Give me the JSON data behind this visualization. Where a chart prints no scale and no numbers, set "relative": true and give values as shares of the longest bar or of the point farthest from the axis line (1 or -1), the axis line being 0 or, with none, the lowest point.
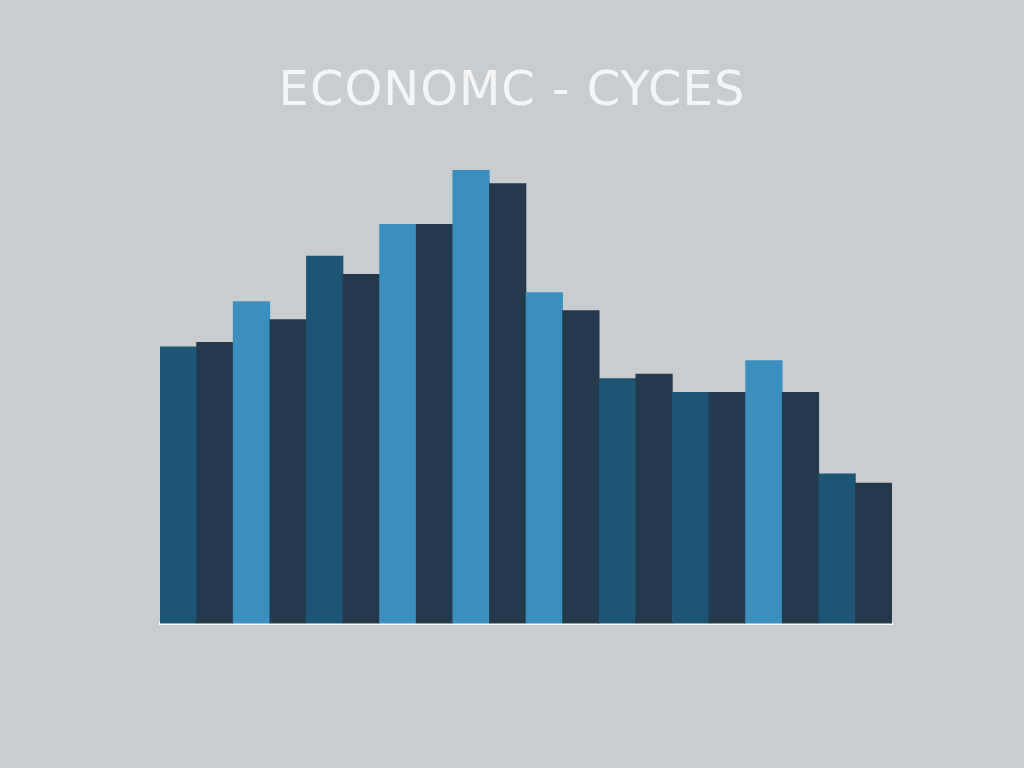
{
  "chart_data": {
    "type": "bar",
    "title": "ECONOMC - CYCES",
    "relative": true,
    "categories": [
      null,
      null,
      null,
      null,
      null,
      null,
      null,
      null,
      null,
      null,
      null,
      null,
      null,
      null,
      null,
      null,
      null,
      null,
      null,
      null
    ],
    "values": [
      0.61,
      0.62,
      0.71,
      0.67,
      0.81,
      0.77,
      0.88,
      0.88,
      1,
      0.97,
      0.73,
      0.69,
      0.54,
      0.55,
      0.51,
      0.51,
      0.58,
      0.51,
      0.33,
      0.31
    ],
    "colors": [
      "#1e5575",
      "#243a4c",
      "#3b8fbf",
      "#243a4c",
      "#1e5575",
      "#243a4c",
      "#3b8fbf",
      "#243a4c",
      "#3b8fbf",
      "#243a4c",
      "#3b8fbf",
      "#243a4c",
      "#1e5575",
      "#243a4c",
      "#1e5575",
      "#243a4c",
      "#3b8fbf",
      "#243a4c",
      "#1e5575",
      "#243a4c"
    ]
  }
}
